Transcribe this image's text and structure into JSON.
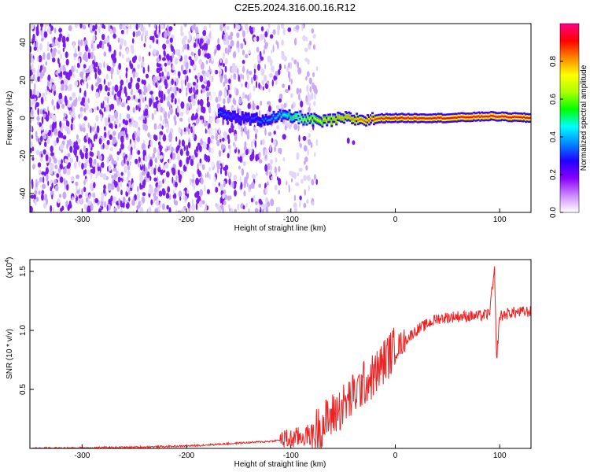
{
  "title": "C2E5.2024.316.00.16.R12",
  "chart_data": [
    {
      "type": "heatmap",
      "xlabel": "Height of straight line (km)",
      "ylabel": "Frequency (Hz)",
      "xlim": [
        -350,
        130
      ],
      "ylim": [
        -50,
        50
      ],
      "xticks": [
        -300,
        -200,
        -100,
        0,
        100
      ],
      "yticks": [
        -40,
        -20,
        0,
        20,
        40
      ],
      "colorbar": {
        "label": "Normalized spectral amplitude",
        "range": [
          0.0,
          1.0
        ],
        "ticks": [
          "0.0",
          "0.2",
          "0.4",
          "0.6",
          "0.8"
        ],
        "colors": [
          "#ffffff",
          "#cc88ff",
          "#8800ff",
          "#2200ff",
          "#0088ff",
          "#00ffff",
          "#00ff00",
          "#aaff00",
          "#ffff00",
          "#ff8800",
          "#ff0000",
          "#ff0088"
        ]
      },
      "ridge": {
        "x": [
          -170,
          -150,
          -130,
          -110,
          -90,
          -70,
          -50,
          -30,
          -10,
          10,
          50,
          90,
          130
        ],
        "freq": [
          2,
          0,
          -1,
          1,
          0,
          -2,
          0,
          -1,
          0,
          0,
          0,
          1,
          0
        ],
        "peak_amplitude": [
          0.35,
          0.3,
          0.35,
          0.45,
          0.65,
          0.75,
          0.8,
          0.85,
          0.9,
          0.95,
          0.95,
          0.95,
          0.95
        ]
      },
      "noise_end_x": -90
    },
    {
      "type": "line",
      "xlabel": "Height of straight line (km)",
      "ylabel": "SNR (10 * v/v)",
      "scale_label": "(x10",
      "scale_exp": "4",
      "xlim": [
        -350,
        130
      ],
      "ylim": [
        0,
        1.6
      ],
      "xticks": [
        -300,
        -200,
        -100,
        0,
        100
      ],
      "yticks": [
        "0.5",
        "1.0",
        "1.5"
      ],
      "ytick_values": [
        0.5,
        1.0,
        1.5
      ],
      "series": [
        {
          "color": "#ee2222",
          "x": [
            -350,
            -250,
            -200,
            -160,
            -120,
            -100,
            -80,
            -70,
            -60,
            -50,
            -40,
            -30,
            -20,
            -10,
            0,
            10,
            20,
            30,
            40,
            60,
            80,
            90,
            95,
            97,
            100,
            110,
            130
          ],
          "y": [
            0.0,
            0.01,
            0.02,
            0.04,
            0.06,
            0.08,
            0.12,
            0.2,
            0.28,
            0.36,
            0.45,
            0.55,
            0.62,
            0.75,
            0.85,
            0.92,
            1.0,
            1.05,
            1.1,
            1.12,
            1.12,
            1.14,
            1.5,
            0.75,
            1.12,
            1.15,
            1.16
          ]
        }
      ]
    }
  ]
}
